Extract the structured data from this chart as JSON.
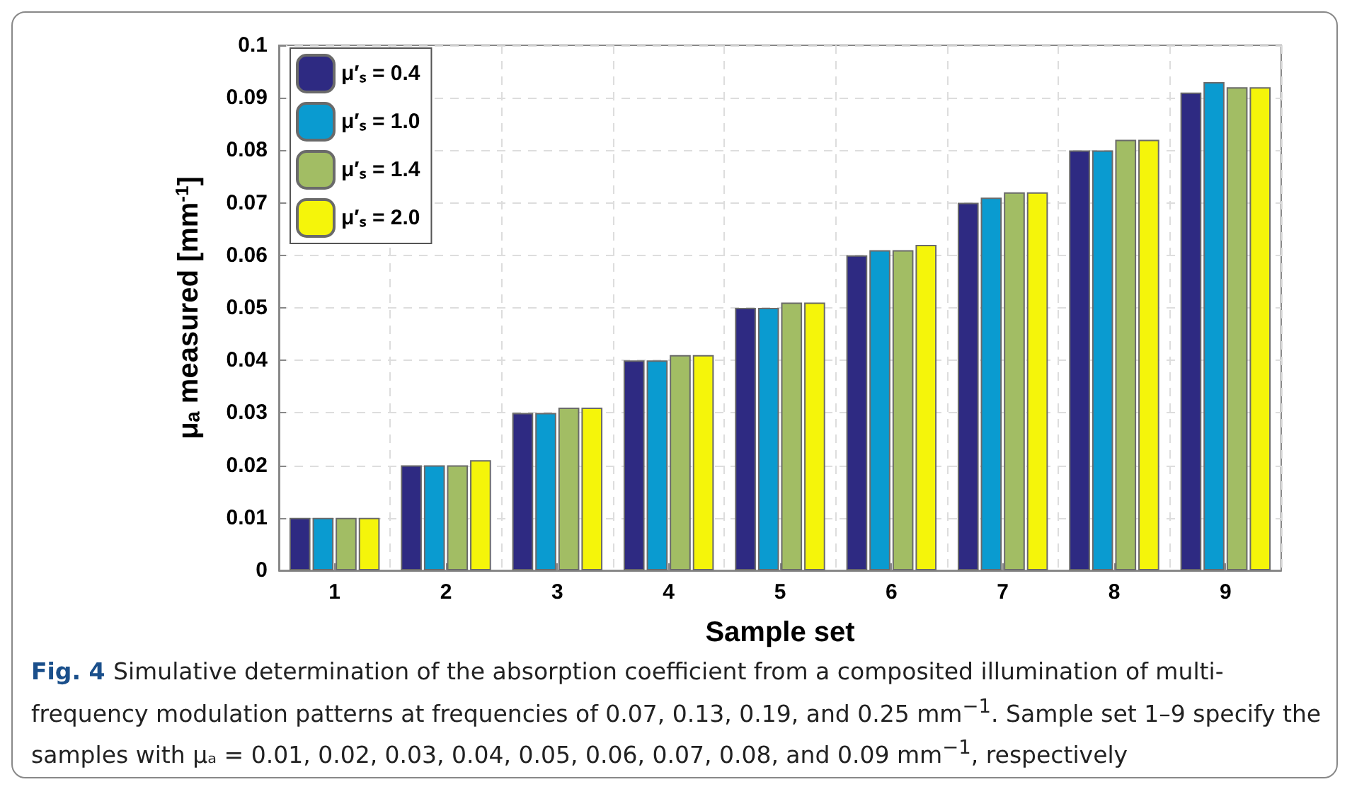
{
  "chart_data": {
    "type": "bar",
    "xlabel": "Sample set",
    "ylabel": "μₐ measured [mm$^{-1}$]",
    "categories": [
      "1",
      "2",
      "3",
      "4",
      "5",
      "6",
      "7",
      "8",
      "9"
    ],
    "series": [
      {
        "name": "μ′ₛ = 0.4",
        "color": "#2e2a82",
        "values": [
          0.01,
          0.02,
          0.03,
          0.04,
          0.05,
          0.06,
          0.07,
          0.08,
          0.091
        ]
      },
      {
        "name": "μ′ₛ = 1.0",
        "color": "#0a9bd0",
        "values": [
          0.01,
          0.02,
          0.03,
          0.04,
          0.05,
          0.061,
          0.071,
          0.08,
          0.093
        ]
      },
      {
        "name": "μ′ₛ = 1.4",
        "color": "#a2bd64",
        "values": [
          0.01,
          0.02,
          0.031,
          0.041,
          0.051,
          0.061,
          0.072,
          0.082,
          0.092
        ]
      },
      {
        "name": "μ′ₛ = 2.0",
        "color": "#f5f50a",
        "values": [
          0.01,
          0.021,
          0.031,
          0.041,
          0.051,
          0.062,
          0.072,
          0.082,
          0.092
        ]
      }
    ],
    "ylim": [
      0,
      0.1
    ],
    "yticks": [
      0,
      0.01,
      0.02,
      0.03,
      0.04,
      0.05,
      0.06,
      0.07,
      0.08,
      0.09,
      0.1
    ],
    "grid": true,
    "legend": "top left",
    "annotations": [
      "Fig. 4",
      "Simulative determination of the absorption coefficient from a composited illumination of multi-frequency modulation patterns at frequencies of 0.07, 0.13, 0.19, and 0.25 mm$^{−1}$. Sample set 1–9 specify the samples with μₐ = 0.01, 0.02, 0.03, 0.04, 0.05, 0.06, 0.07, 0.08, and 0.09 mm$^{−1}$, respectively"
    ]
  }
}
